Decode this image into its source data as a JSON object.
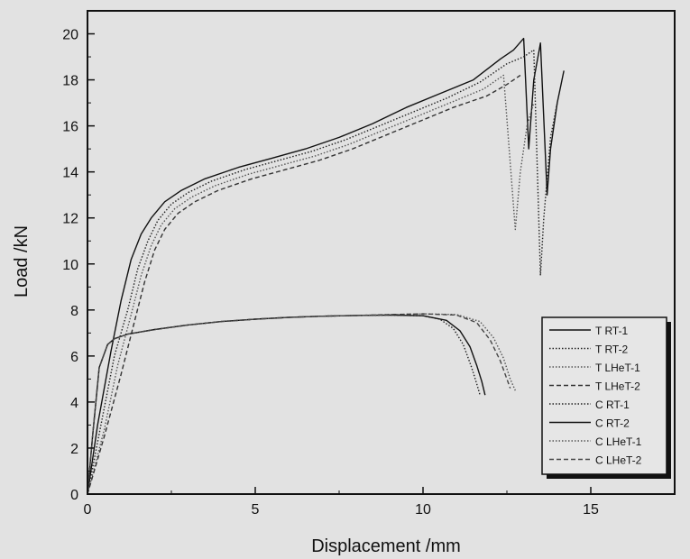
{
  "chart_data": {
    "type": "line",
    "xlabel": "Displacement /mm",
    "ylabel": "Load /kN",
    "xlim": [
      0,
      17.5
    ],
    "ylim": [
      0,
      21
    ],
    "xticks": [
      0,
      5,
      10,
      15
    ],
    "yticks": [
      0,
      2,
      4,
      6,
      8,
      10,
      12,
      14,
      16,
      18,
      20
    ],
    "grid": false,
    "legend_position": "bottom-right",
    "series": [
      {
        "name": "T RT-1",
        "style": "solid",
        "color": "#111111",
        "x": [
          0,
          0.3,
          0.7,
          1.0,
          1.3,
          1.6,
          1.9,
          2.3,
          2.8,
          3.5,
          4.5,
          5.5,
          6.5,
          7.5,
          8.5,
          9.5,
          10.5,
          11.5,
          12.3,
          12.7,
          13.0,
          13.15,
          13.3,
          13.5,
          13.7,
          13.8,
          14.0,
          14.2
        ],
        "y": [
          0,
          3.0,
          6.2,
          8.4,
          10.2,
          11.3,
          12.0,
          12.7,
          13.2,
          13.7,
          14.2,
          14.6,
          15.0,
          15.5,
          16.1,
          16.8,
          17.4,
          18.0,
          18.9,
          19.3,
          19.8,
          15.0,
          18.0,
          19.6,
          13.0,
          15.0,
          17.0,
          18.4
        ]
      },
      {
        "name": "T RT-2",
        "style": "dotted",
        "color": "#222222",
        "x": [
          0,
          0.4,
          0.8,
          1.2,
          1.5,
          1.8,
          2.1,
          2.5,
          3.0,
          3.7,
          4.7,
          5.7,
          6.7,
          7.7,
          8.7,
          9.7,
          10.7,
          11.7,
          12.5,
          13.0,
          13.3,
          13.5,
          13.6,
          13.8,
          14.0
        ],
        "y": [
          0,
          3.0,
          6.0,
          8.0,
          9.8,
          11.0,
          11.9,
          12.6,
          13.1,
          13.6,
          14.1,
          14.5,
          14.9,
          15.4,
          16.0,
          16.6,
          17.2,
          17.9,
          18.7,
          19.0,
          19.3,
          9.5,
          12.0,
          15.5,
          17.0
        ]
      },
      {
        "name": "T LHeT-1",
        "style": "dotted",
        "color": "#555555",
        "x": [
          0,
          0.5,
          0.9,
          1.3,
          1.6,
          1.9,
          2.2,
          2.6,
          3.1,
          3.8,
          4.8,
          5.8,
          6.8,
          7.8,
          8.8,
          9.8,
          10.8,
          11.8,
          12.4,
          12.75,
          12.9,
          13.1,
          13.3
        ],
        "y": [
          0,
          2.8,
          5.6,
          7.8,
          9.5,
          10.8,
          11.7,
          12.4,
          12.9,
          13.4,
          13.9,
          14.3,
          14.7,
          15.2,
          15.8,
          16.4,
          17.0,
          17.6,
          18.2,
          11.5,
          14.0,
          16.0,
          17.0
        ]
      },
      {
        "name": "T LHeT-2",
        "style": "dashed",
        "color": "#333333",
        "x": [
          0,
          0.5,
          1.0,
          1.4,
          1.7,
          2.0,
          2.3,
          2.7,
          3.2,
          3.9,
          4.9,
          5.9,
          6.9,
          7.9,
          8.9,
          9.9,
          10.9,
          11.9,
          12.5,
          12.9
        ],
        "y": [
          0,
          2.5,
          5.2,
          7.5,
          9.2,
          10.6,
          11.5,
          12.2,
          12.7,
          13.2,
          13.7,
          14.1,
          14.5,
          15.0,
          15.6,
          16.2,
          16.8,
          17.3,
          17.8,
          18.2
        ]
      },
      {
        "name": "C RT-1",
        "style": "dotted",
        "color": "#222222",
        "x": [
          0,
          0.15,
          0.35,
          0.6,
          0.8,
          1.2,
          2.0,
          3.0,
          4.0,
          5.0,
          6.0,
          7.0,
          8.0,
          9.0,
          10.0,
          10.5,
          10.9,
          11.2,
          11.45,
          11.6,
          11.7
        ],
        "y": [
          0,
          2.5,
          5.5,
          6.5,
          6.75,
          6.95,
          7.15,
          7.35,
          7.5,
          7.6,
          7.68,
          7.73,
          7.76,
          7.78,
          7.75,
          7.6,
          7.2,
          6.5,
          5.5,
          4.8,
          4.3
        ]
      },
      {
        "name": "C RT-2",
        "style": "solid",
        "color": "#111111",
        "x": [
          0,
          0.15,
          0.35,
          0.6,
          0.8,
          1.2,
          2.0,
          3.0,
          4.0,
          5.0,
          6.0,
          7.0,
          8.0,
          9.0,
          10.0,
          10.7,
          11.1,
          11.4,
          11.6,
          11.75,
          11.85
        ],
        "y": [
          0,
          2.5,
          5.5,
          6.5,
          6.75,
          6.95,
          7.15,
          7.35,
          7.5,
          7.6,
          7.68,
          7.73,
          7.76,
          7.78,
          7.75,
          7.55,
          7.1,
          6.4,
          5.6,
          4.9,
          4.3
        ]
      },
      {
        "name": "C LHeT-1",
        "style": "dotted",
        "color": "#555555",
        "x": [
          0,
          0.15,
          0.35,
          0.6,
          0.8,
          1.2,
          2.0,
          3.0,
          4.0,
          5.0,
          6.0,
          7.0,
          8.0,
          9.0,
          10.0,
          11.0,
          11.7,
          12.1,
          12.4,
          12.6,
          12.75
        ],
        "y": [
          0,
          2.5,
          5.5,
          6.5,
          6.75,
          6.95,
          7.15,
          7.35,
          7.5,
          7.6,
          7.68,
          7.73,
          7.76,
          7.8,
          7.83,
          7.8,
          7.5,
          6.8,
          5.9,
          5.0,
          4.5
        ]
      },
      {
        "name": "C LHeT-2",
        "style": "dashed",
        "color": "#444444",
        "x": [
          0,
          0.15,
          0.35,
          0.6,
          0.8,
          1.2,
          2.0,
          3.0,
          4.0,
          5.0,
          6.0,
          7.0,
          8.0,
          9.0,
          10.0,
          11.0,
          11.6,
          12.0,
          12.3,
          12.5,
          12.6
        ],
        "y": [
          0,
          2.5,
          5.5,
          6.5,
          6.75,
          6.95,
          7.15,
          7.35,
          7.5,
          7.6,
          7.68,
          7.73,
          7.76,
          7.8,
          7.83,
          7.78,
          7.45,
          6.7,
          5.8,
          5.0,
          4.6
        ]
      }
    ]
  }
}
